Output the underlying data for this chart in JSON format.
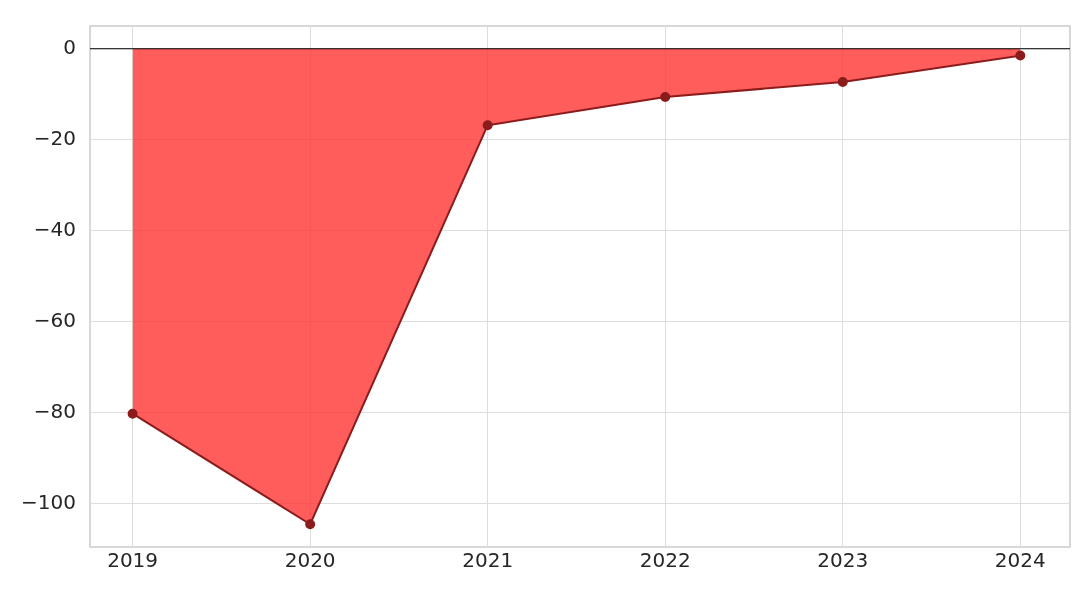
{
  "chart_data": {
    "type": "area",
    "x": [
      2019,
      2020,
      2021,
      2022,
      2023,
      2024
    ],
    "series": [
      {
        "color": "#ff3333",
        "values": [
          -80.2,
          -104.5,
          -16.8,
          -10.6,
          -7.3,
          -1.5
        ]
      }
    ],
    "xlim": [
      2018.76,
      2024.28
    ],
    "xticks": [
      2019,
      2020,
      2021,
      2022,
      2023,
      2024
    ],
    "ylim": [
      -109.5,
      5
    ],
    "yticks": [
      -100,
      -80,
      -60,
      -40,
      -20,
      0
    ],
    "ref_lines": [
      {
        "axis": "y",
        "value": 0,
        "color": "#000000"
      }
    ],
    "grid": true,
    "marker": "circle",
    "line_style": "solid",
    "legend": false
  }
}
